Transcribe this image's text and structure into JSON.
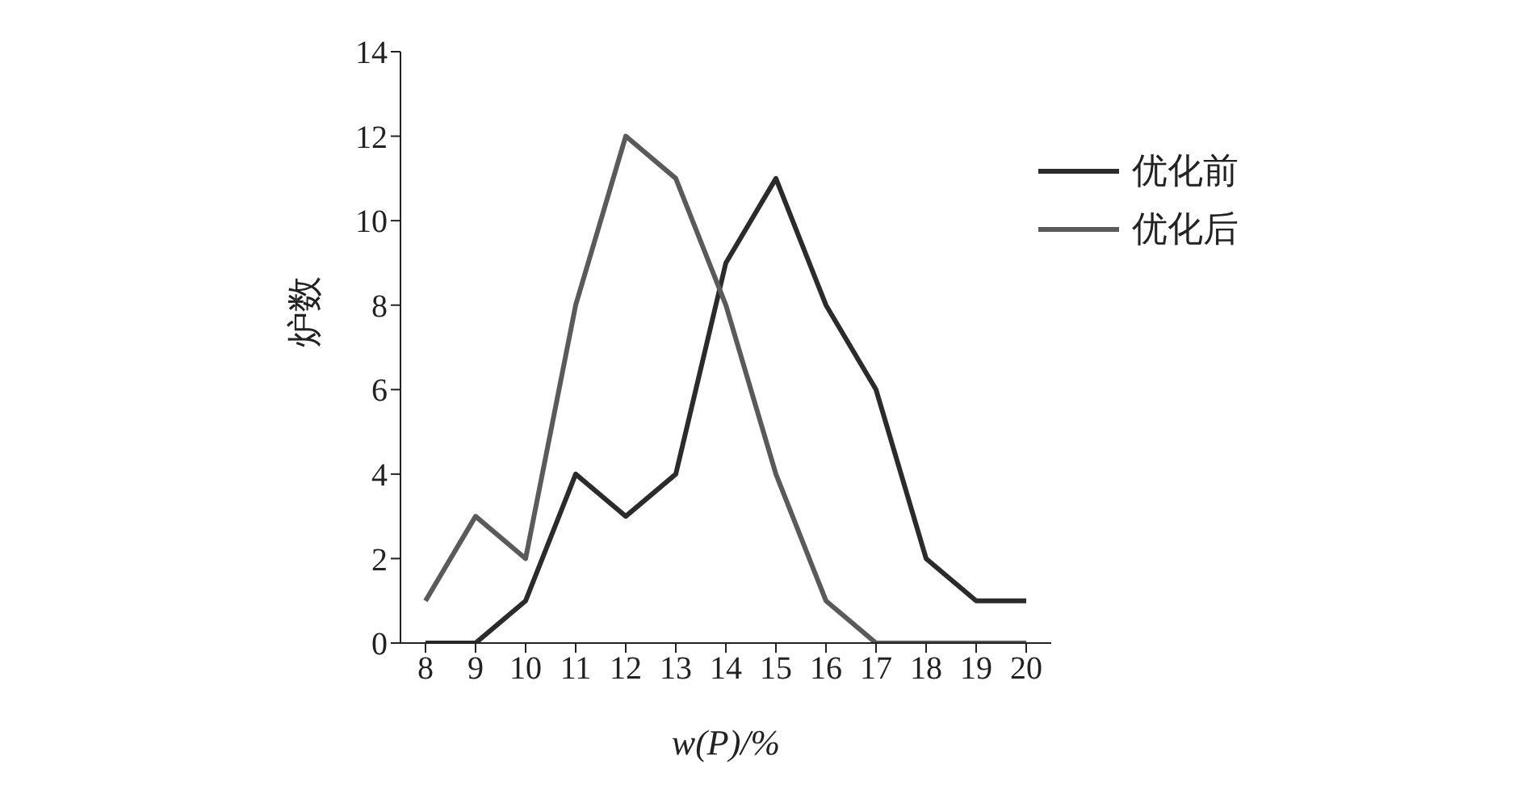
{
  "chart_data": {
    "type": "line",
    "xlabel": "w(P)/%",
    "ylabel": "炉数",
    "x": [
      8,
      9,
      10,
      11,
      12,
      13,
      14,
      15,
      16,
      17,
      18,
      19,
      20
    ],
    "series": [
      {
        "name": "优化前",
        "color": "#2b2b2b",
        "values": [
          0,
          0,
          1,
          4,
          3,
          4,
          9,
          11,
          8,
          6,
          2,
          1,
          1
        ]
      },
      {
        "name": "优化后",
        "color": "#5a5a5a",
        "values": [
          1,
          3,
          2,
          8,
          12,
          11,
          8,
          4,
          1,
          0,
          0,
          0,
          0
        ]
      }
    ],
    "xlim": [
      7.5,
      20.5
    ],
    "xticks": [
      8,
      9,
      10,
      11,
      12,
      13,
      14,
      15,
      16,
      17,
      18,
      19,
      20
    ],
    "ylim": [
      0,
      14
    ],
    "yticks": [
      0,
      2,
      4,
      6,
      8,
      10,
      12,
      14
    ],
    "legend": "top right",
    "marker": "none",
    "line_style": "solid",
    "grid": false
  }
}
